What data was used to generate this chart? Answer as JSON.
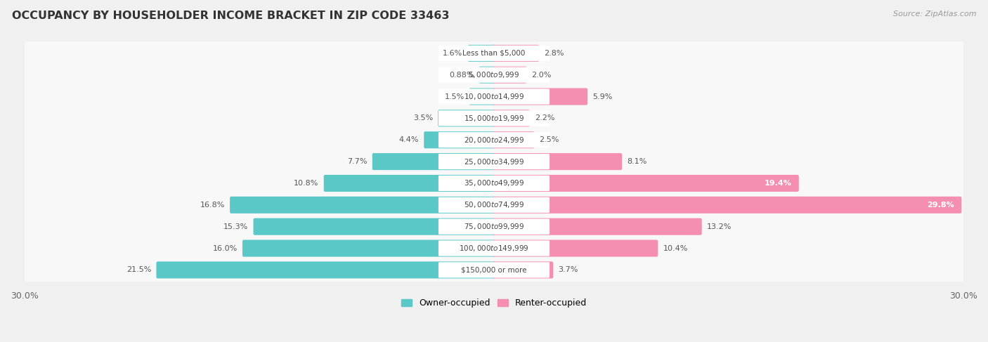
{
  "title": "OCCUPANCY BY HOUSEHOLDER INCOME BRACKET IN ZIP CODE 33463",
  "source": "Source: ZipAtlas.com",
  "categories": [
    "Less than $5,000",
    "$5,000 to $9,999",
    "$10,000 to $14,999",
    "$15,000 to $19,999",
    "$20,000 to $24,999",
    "$25,000 to $34,999",
    "$35,000 to $49,999",
    "$50,000 to $74,999",
    "$75,000 to $99,999",
    "$100,000 to $149,999",
    "$150,000 or more"
  ],
  "owner_values": [
    1.6,
    0.88,
    1.5,
    3.5,
    4.4,
    7.7,
    10.8,
    16.8,
    15.3,
    16.0,
    21.5
  ],
  "renter_values": [
    2.8,
    2.0,
    5.9,
    2.2,
    2.5,
    8.1,
    19.4,
    29.8,
    13.2,
    10.4,
    3.7
  ],
  "owner_color": "#5bc8c8",
  "renter_color": "#f48fb1",
  "background_color": "#f0f0f0",
  "row_bg_color": "#e8e8e8",
  "row_inner_color": "#f8f8f8",
  "axis_max": 30.0,
  "bar_height": 0.62,
  "title_fontsize": 11.5,
  "label_fontsize": 8.0,
  "category_fontsize": 7.5,
  "legend_fontsize": 9,
  "source_fontsize": 8.0,
  "renter_inside_threshold": 19.0
}
